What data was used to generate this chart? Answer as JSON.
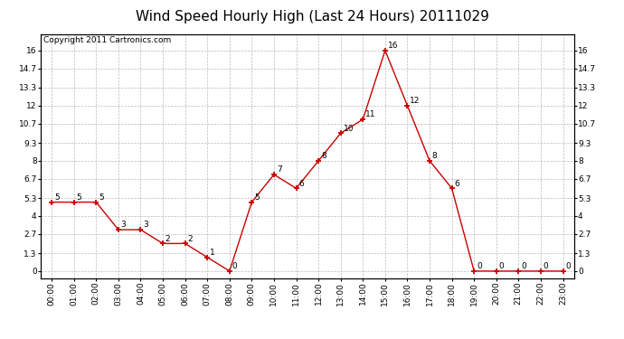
{
  "title": "Wind Speed Hourly High (Last 24 Hours) 20111029",
  "copyright": "Copyright 2011 Cartronics.com",
  "hours": [
    "00:00",
    "01:00",
    "02:00",
    "03:00",
    "04:00",
    "05:00",
    "06:00",
    "07:00",
    "08:00",
    "09:00",
    "10:00",
    "11:00",
    "12:00",
    "13:00",
    "14:00",
    "15:00",
    "16:00",
    "17:00",
    "18:00",
    "19:00",
    "20:00",
    "21:00",
    "22:00",
    "23:00"
  ],
  "values": [
    5,
    5,
    5,
    3,
    3,
    2,
    2,
    1,
    0,
    5,
    7,
    6,
    8,
    10,
    11,
    16,
    12,
    8,
    6,
    0,
    0,
    0,
    0,
    0
  ],
  "line_color": "#cc0000",
  "marker_color": "#cc0000",
  "bg_color": "#ffffff",
  "grid_color": "#bbbbbb",
  "yticks": [
    0.0,
    1.3,
    2.7,
    4.0,
    5.3,
    6.7,
    8.0,
    9.3,
    10.7,
    12.0,
    13.3,
    14.7,
    16.0
  ],
  "ylim": [
    -0.5,
    17.2
  ],
  "title_fontsize": 11,
  "copyright_fontsize": 6.5,
  "label_fontsize": 6.5,
  "tick_fontsize": 6.5
}
